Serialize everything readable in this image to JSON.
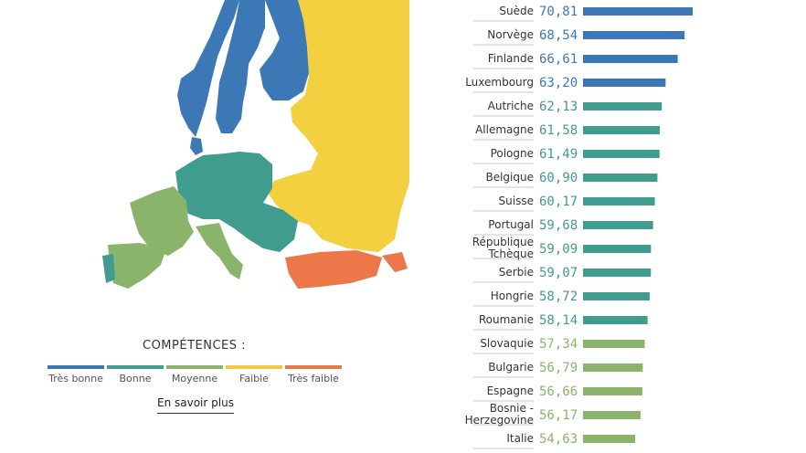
{
  "legend": {
    "title": "COMPÉTENCES :",
    "items": [
      {
        "label": "Très bonne",
        "color": "#3b78b5"
      },
      {
        "label": "Bonne",
        "color": "#3f9c8f"
      },
      {
        "label": "Moyenne",
        "color": "#8ab46a"
      },
      {
        "label": "Faible",
        "color": "#f0c93d"
      },
      {
        "label": "Très faible",
        "color": "#ec7748"
      }
    ]
  },
  "more_link": "En savoir plus",
  "chart_data": {
    "type": "bar",
    "orientation": "horizontal",
    "categories": [
      "Suède",
      "Norvège",
      "Finlande",
      "Luxembourg",
      "Autriche",
      "Allemagne",
      "Pologne",
      "Belgique",
      "Suisse",
      "Portugal",
      "République Tchèque",
      "Serbie",
      "Hongrie",
      "Roumanie",
      "Slovaquie",
      "Bulgarie",
      "Espagne",
      "Bosnie - Herzegovine",
      "Italie"
    ],
    "values": [
      70.81,
      68.54,
      66.61,
      63.2,
      62.13,
      61.58,
      61.49,
      60.9,
      60.17,
      59.68,
      59.09,
      59.07,
      58.72,
      58.14,
      57.34,
      56.79,
      56.66,
      56.17,
      54.63
    ],
    "value_labels": [
      "70,81",
      "68,54",
      "66,61",
      "63,20",
      "62,13",
      "61,58",
      "61,49",
      "60,90",
      "60,17",
      "59,68",
      "59,09",
      "59,07",
      "58,72",
      "58,14",
      "57,34",
      "56,79",
      "56,66",
      "56,17",
      "54,63"
    ],
    "levels": [
      "Très bonne",
      "Très bonne",
      "Très bonne",
      "Très bonne",
      "Bonne",
      "Bonne",
      "Bonne",
      "Bonne",
      "Bonne",
      "Bonne",
      "Bonne",
      "Bonne",
      "Bonne",
      "Bonne",
      "Moyenne",
      "Moyenne",
      "Moyenne",
      "Moyenne",
      "Moyenne"
    ],
    "colors": {
      "Très bonne": "#3b78b5",
      "Bonne": "#3f9c8f",
      "Moyenne": "#8ab46a",
      "Faible": "#f0c93d",
      "Très faible": "#ec7748"
    },
    "title": "",
    "xlabel": "",
    "ylabel": ""
  }
}
